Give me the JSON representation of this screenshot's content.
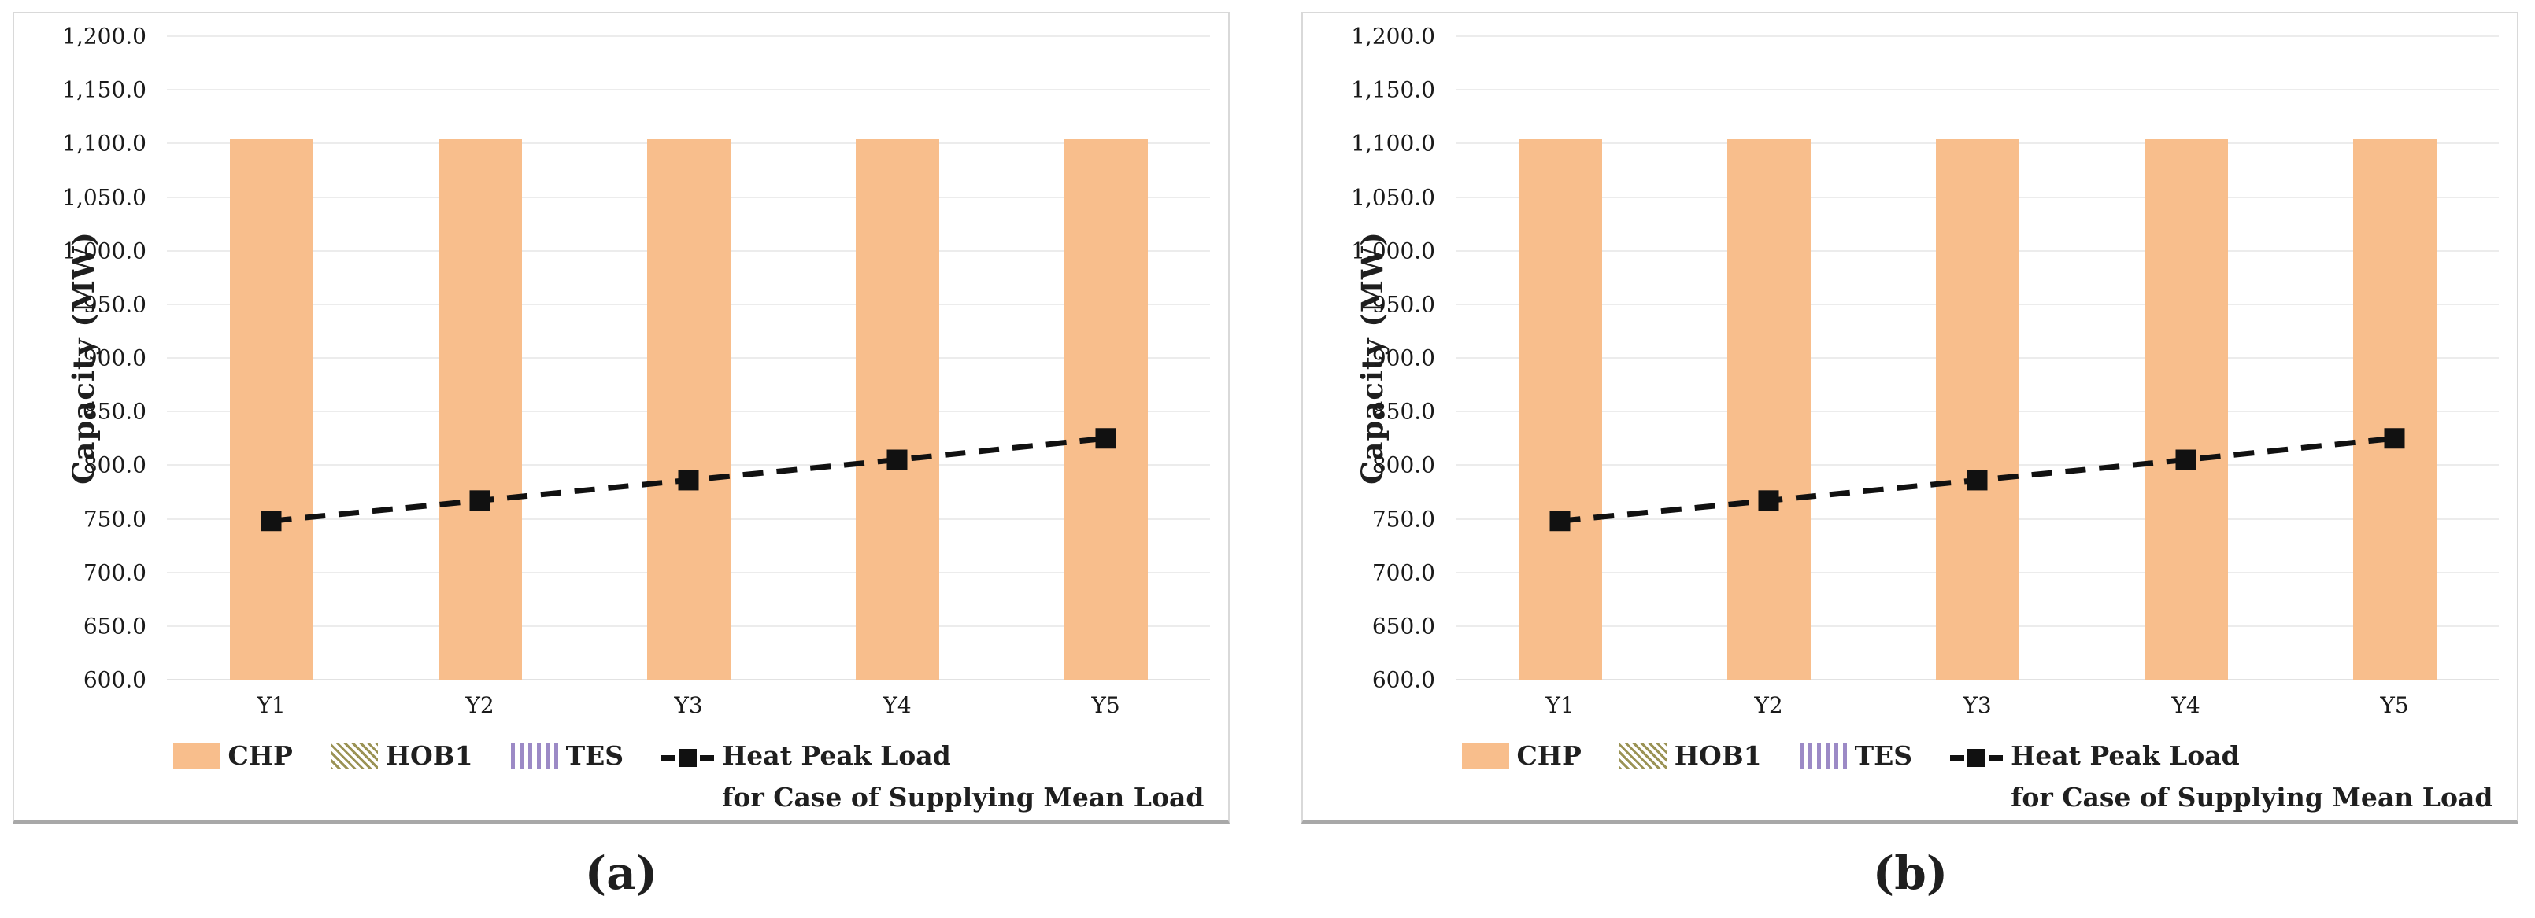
{
  "page": {
    "captions": {
      "a": "(a)",
      "b": "(b)"
    },
    "colors": {
      "bar_fill": "#F8BE8C",
      "hob1_hatch": "#9B9355",
      "tes_stripe": "#9C8AC6",
      "line": "#111111",
      "gridline": "#ECECEC",
      "panel_border": "#D9D9D9",
      "panel_border_bottom": "#A8A8A8",
      "text": "#1F1F1F"
    }
  },
  "chart_data": [
    {
      "type": "bar",
      "panel": "a",
      "ylabel": "Capacity (MW)",
      "xlabel": "",
      "ylim": [
        600,
        1200
      ],
      "ytick_step": 50,
      "ytick_labels": [
        "1,200.0",
        "1,150.0",
        "1,100.0",
        "1,050.0",
        "1,000.0",
        "950.0",
        "900.0",
        "850.0",
        "800.0",
        "750.0",
        "700.0",
        "650.0",
        "600.0"
      ],
      "categories": [
        "Y1",
        "Y2",
        "Y3",
        "Y4",
        "Y5"
      ],
      "grid": true,
      "legend_position": "bottom",
      "series": [
        {
          "name": "CHP",
          "type": "bar",
          "color": "#F8BE8C",
          "values": [
            1104,
            1104,
            1104,
            1104,
            1104
          ]
        },
        {
          "name": "HOB1",
          "type": "bar",
          "color": "#9B9355",
          "values": [
            0,
            0,
            0,
            0,
            0
          ]
        },
        {
          "name": "TES",
          "type": "bar",
          "color": "#9C8AC6",
          "values": [
            0,
            0,
            0,
            0,
            0
          ]
        },
        {
          "name": "Heat Peak Load for Case of Supplying Mean Load",
          "type": "line",
          "color": "#111111",
          "values": [
            748,
            767,
            786,
            805,
            825
          ]
        }
      ],
      "legend": [
        {
          "label": "CHP",
          "swatch": "bar-solid"
        },
        {
          "label": "HOB1",
          "swatch": "bar-hatch"
        },
        {
          "label": "TES",
          "swatch": "bar-stripes"
        },
        {
          "label": "Heat Peak Load",
          "label_line2": "for Case of Supplying Mean Load",
          "swatch": "line-marker"
        }
      ]
    },
    {
      "type": "bar",
      "panel": "b",
      "ylabel": "Capacity (MW)",
      "xlabel": "",
      "ylim": [
        600,
        1200
      ],
      "ytick_step": 50,
      "ytick_labels": [
        "1,200.0",
        "1,150.0",
        "1,100.0",
        "1,050.0",
        "1,000.0",
        "950.0",
        "900.0",
        "850.0",
        "800.0",
        "750.0",
        "700.0",
        "650.0",
        "600.0"
      ],
      "categories": [
        "Y1",
        "Y2",
        "Y3",
        "Y4",
        "Y5"
      ],
      "grid": true,
      "legend_position": "bottom",
      "series": [
        {
          "name": "CHP",
          "type": "bar",
          "color": "#F8BE8C",
          "values": [
            1104,
            1104,
            1104,
            1104,
            1104
          ]
        },
        {
          "name": "HOB1",
          "type": "bar",
          "color": "#9B9355",
          "values": [
            0,
            0,
            0,
            0,
            0
          ]
        },
        {
          "name": "TES",
          "type": "bar",
          "color": "#9C8AC6",
          "values": [
            0,
            0,
            0,
            0,
            0
          ]
        },
        {
          "name": "Heat Peak Load for Case of Supplying Mean Load",
          "type": "line",
          "color": "#111111",
          "values": [
            748,
            767,
            786,
            805,
            825
          ]
        }
      ],
      "legend": [
        {
          "label": "CHP",
          "swatch": "bar-solid"
        },
        {
          "label": "HOB1",
          "swatch": "bar-hatch"
        },
        {
          "label": "TES",
          "swatch": "bar-stripes"
        },
        {
          "label": "Heat Peak Load",
          "label_line2": "for Case of Supplying Mean Load",
          "swatch": "line-marker"
        }
      ]
    }
  ]
}
